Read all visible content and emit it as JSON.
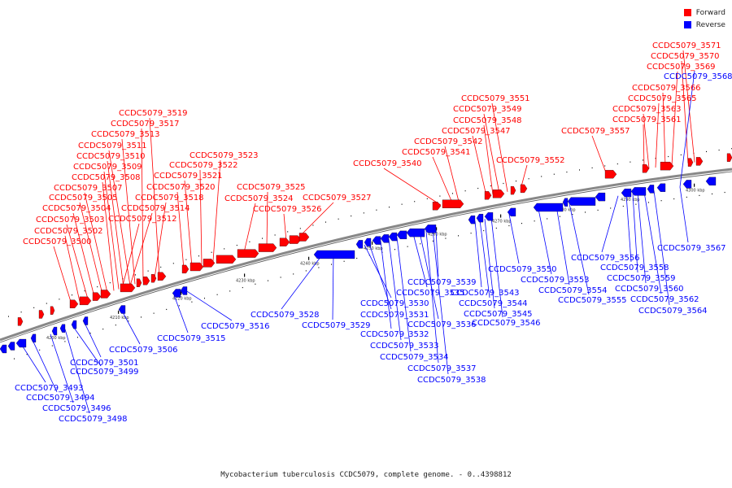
{
  "legend": [
    {
      "label": "Forward",
      "color": "#ff0000"
    },
    {
      "label": "Reverse",
      "color": "#0000ff"
    }
  ],
  "caption": "Mycobacterium tuberculosis CCDC5079, complete genome. - 0..4398812",
  "colors": {
    "forward": "#ff0000",
    "reverse": "#0000ff",
    "backbone": "#888888"
  },
  "scale_ticks": [
    "4200 kbp",
    "4210 kbp",
    "4220 kbp",
    "4230 kbp",
    "4240 kbp",
    "4250 kbp",
    "4260 kbp",
    "4270 kbp",
    "4280 kbp",
    "4290 kbp",
    "4300 kbp"
  ],
  "forward_genes": [
    "CCDC5079_3500",
    "CCDC5079_3502",
    "CCDC5079_3503",
    "CCDC5079_3504",
    "CCDC5079_3505",
    "CCDC5079_3507",
    "CCDC5079_3508",
    "CCDC5079_3509",
    "CCDC5079_3510",
    "CCDC5079_3511",
    "CCDC5079_3513",
    "CCDC5079_3517",
    "CCDC5079_3519",
    "CCDC5079_3512",
    "CCDC5079_3514",
    "CCDC5079_3518",
    "CCDC5079_3520",
    "CCDC5079_3521",
    "CCDC5079_3522",
    "CCDC5079_3523",
    "CCDC5079_3524",
    "CCDC5079_3525",
    "CCDC5079_3526",
    "CCDC5079_3527",
    "CCDC5079_3540",
    "CCDC5079_3541",
    "CCDC5079_3542",
    "CCDC5079_3547",
    "CCDC5079_3548",
    "CCDC5079_3549",
    "CCDC5079_3551",
    "CCDC5079_3552",
    "CCDC5079_3557",
    "CCDC5079_3561",
    "CCDC5079_3563",
    "CCDC5079_3565",
    "CCDC5079_3566",
    "CCDC5079_3569",
    "CCDC5079_3570",
    "CCDC5079_3571"
  ],
  "reverse_genes": [
    "CCDC5079_3493",
    "CCDC5079_3494",
    "CCDC5079_3496",
    "CCDC5079_3498",
    "CCDC5079_3499",
    "CCDC5079_3501",
    "CCDC5079_3506",
    "CCDC5079_3515",
    "CCDC5079_3516",
    "CCDC5079_3528",
    "CCDC5079_3529",
    "CCDC5079_3530",
    "CCDC5079_3531",
    "CCDC5079_3532",
    "CCDC5079_3533",
    "CCDC5079_3534",
    "CCDC5079_3535",
    "CCDC5079_3536",
    "CCDC5079_3537",
    "CCDC5079_3538",
    "CCDC5079_3539",
    "CCDC5079_3543",
    "CCDC5079_3544",
    "CCDC5079_3545",
    "CCDC5079_3546",
    "CCDC5079_3550",
    "CCDC5079_3553",
    "CCDC5079_3554",
    "CCDC5079_3555",
    "CCDC5079_3556",
    "CCDC5079_3558",
    "CCDC5079_3559",
    "CCDC5079_3560",
    "CCDC5079_3562",
    "CCDC5079_3564",
    "CCDC5079_3567",
    "CCDC5079_3568"
  ]
}
